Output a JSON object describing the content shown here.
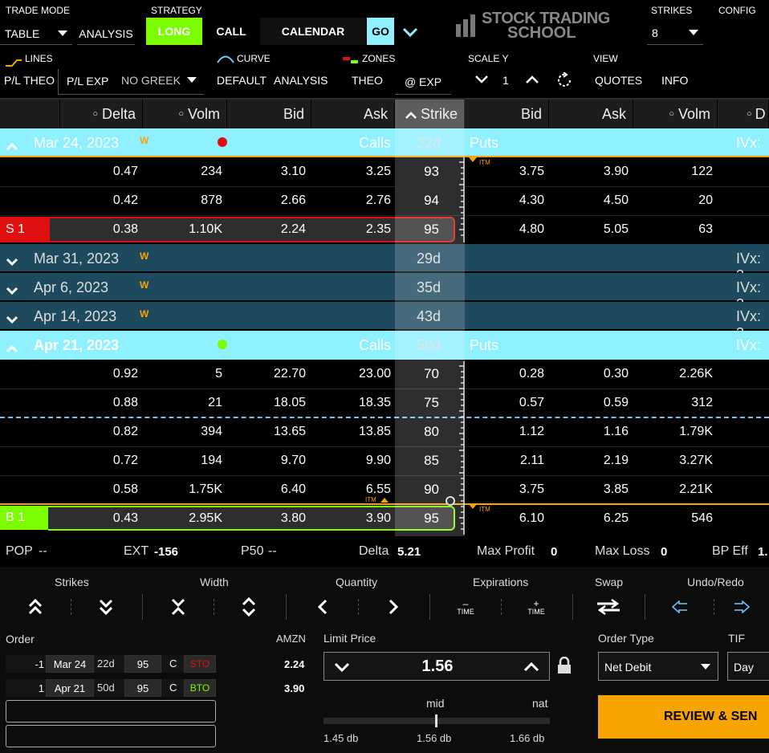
{
  "toolbar": {
    "trade_mode_label": "TRADE MODE",
    "trade_mode_value": "TABLE",
    "analysis": "ANALYSIS",
    "strategy_label": "STRATEGY",
    "long": "LONG",
    "call": "CALL",
    "calendar": "CALENDAR",
    "go": "GO",
    "logo_line1": "STOCK TRADING",
    "logo_line2": "SCHOOL",
    "strikes_label": "STRIKES",
    "strikes_value": "8",
    "config": "CONFIG"
  },
  "toolbar2": {
    "lines": "LINES",
    "curve": "CURVE",
    "zones": "ZONES",
    "scale_y": "SCALE Y",
    "view": "VIEW",
    "pl_theo": "P/L THEO",
    "pl_exp": "P/L EXP",
    "no_greek": "NO GREEK",
    "default": "DEFAULT",
    "analysis": "ANALYSIS",
    "theo": "THEO",
    "at_exp": "@ EXP",
    "scale_value": "1",
    "quotes": "QUOTES",
    "info": "INFO"
  },
  "colors": {
    "accent_green": "#7cfc00",
    "expiry_light": "#8ff0ff",
    "expiry_dark": "#1e4a5e",
    "sell_red": "#e01010",
    "buy_green": "#7cfc00",
    "orange": "#f7a400"
  },
  "headers": {
    "delta": "Delta",
    "volm": "Volm",
    "bid": "Bid",
    "ask": "Ask",
    "strike": "Strike",
    "bid2": "Bid",
    "ask2": "Ask",
    "volm2": "Volm",
    "d_partial": "D"
  },
  "expirations": [
    {
      "date": "Mar 24, 2023",
      "tag": "W",
      "days": "22d",
      "calls": "Calls",
      "puts": "Puts",
      "ivx": "IVx:"
    },
    {
      "date": "Mar 31, 2023",
      "tag": "W",
      "days": "29d",
      "ivx": "IVx: 3"
    },
    {
      "date": "Apr 6, 2023",
      "tag": "W",
      "days": "35d",
      "ivx": "IVx: 3"
    },
    {
      "date": "Apr 14, 2023",
      "tag": "W",
      "days": "43d",
      "ivx": "IVx: 3"
    },
    {
      "date": "Apr 21, 2023",
      "tag": "",
      "days": "50d",
      "calls": "Calls",
      "puts": "Puts",
      "ivx": "IVx:"
    }
  ],
  "rows_mar": [
    {
      "delta": "0.47",
      "volm": "234",
      "bid": "3.10",
      "ask": "3.25",
      "strike": "93",
      "pbid": "3.75",
      "pask": "3.90",
      "pvolm": "122"
    },
    {
      "delta": "0.42",
      "volm": "878",
      "bid": "2.66",
      "ask": "2.76",
      "strike": "94",
      "pbid": "4.30",
      "pask": "4.50",
      "pvolm": "20"
    },
    {
      "leg": "S 1",
      "delta": "0.38",
      "volm": "1.10K",
      "bid": "2.24",
      "ask": "2.35",
      "strike": "95",
      "pbid": "4.80",
      "pask": "5.05",
      "pvolm": "63"
    }
  ],
  "rows_apr": [
    {
      "delta": "0.92",
      "volm": "5",
      "bid": "22.70",
      "ask": "23.00",
      "strike": "70",
      "pbid": "0.28",
      "pask": "0.30",
      "pvolm": "2.26K"
    },
    {
      "delta": "0.88",
      "volm": "21",
      "bid": "18.05",
      "ask": "18.35",
      "strike": "75",
      "pbid": "0.57",
      "pask": "0.59",
      "pvolm": "312"
    },
    {
      "delta": "0.82",
      "volm": "394",
      "bid": "13.65",
      "ask": "13.85",
      "strike": "80",
      "pbid": "1.12",
      "pask": "1.16",
      "pvolm": "1.79K"
    },
    {
      "delta": "0.72",
      "volm": "194",
      "bid": "9.70",
      "ask": "9.90",
      "strike": "85",
      "pbid": "2.11",
      "pask": "2.19",
      "pvolm": "3.27K"
    },
    {
      "delta": "0.58",
      "volm": "1.75K",
      "bid": "6.40",
      "ask": "6.55",
      "strike": "90",
      "pbid": "3.75",
      "pask": "3.85",
      "pvolm": "2.21K"
    },
    {
      "leg": "B 1",
      "delta": "0.43",
      "volm": "2.95K",
      "bid": "3.80",
      "ask": "3.90",
      "strike": "95",
      "pbid": "6.10",
      "pask": "6.25",
      "pvolm": "546"
    }
  ],
  "itm": "ITM",
  "stats": {
    "pop_l": "POP",
    "pop_v": "--",
    "ext_l": "EXT",
    "ext_v": "-156",
    "p50_l": "P50",
    "p50_v": "--",
    "delta_l": "Delta",
    "delta_v": "5.21",
    "maxp_l": "Max Profit",
    "maxp_v": "0",
    "maxl_l": "Max Loss",
    "maxl_v": "0",
    "bp_l": "BP Eff",
    "bp_v": "1."
  },
  "controls": {
    "strikes": "Strikes",
    "width": "Width",
    "quantity": "Quantity",
    "expirations": "Expirations",
    "swap": "Swap",
    "undo_redo": "Undo/Redo",
    "time": "TIME",
    "minus": "–",
    "plus": "+"
  },
  "order": {
    "label": "Order",
    "symbol": "AMZN",
    "legs": [
      {
        "qty": "-1",
        "exp": "Mar 24",
        "days": "22d",
        "strike": "95",
        "type": "C",
        "action": "STO",
        "price": "2.24"
      },
      {
        "qty": "1",
        "exp": "Apr 21",
        "days": "50d",
        "strike": "95",
        "type": "C",
        "action": "BTO",
        "price": "3.90"
      }
    ],
    "limit_label": "Limit Price",
    "limit_value": "1.56",
    "mid": "mid",
    "nat": "nat",
    "low": "1.45 db",
    "midv": "1.56 db",
    "high": "1.66 db",
    "order_type_label": "Order Type",
    "order_type": "Net Debit",
    "tif_label": "TIF",
    "tif": "Day",
    "review": "REVIEW & SEN"
  }
}
